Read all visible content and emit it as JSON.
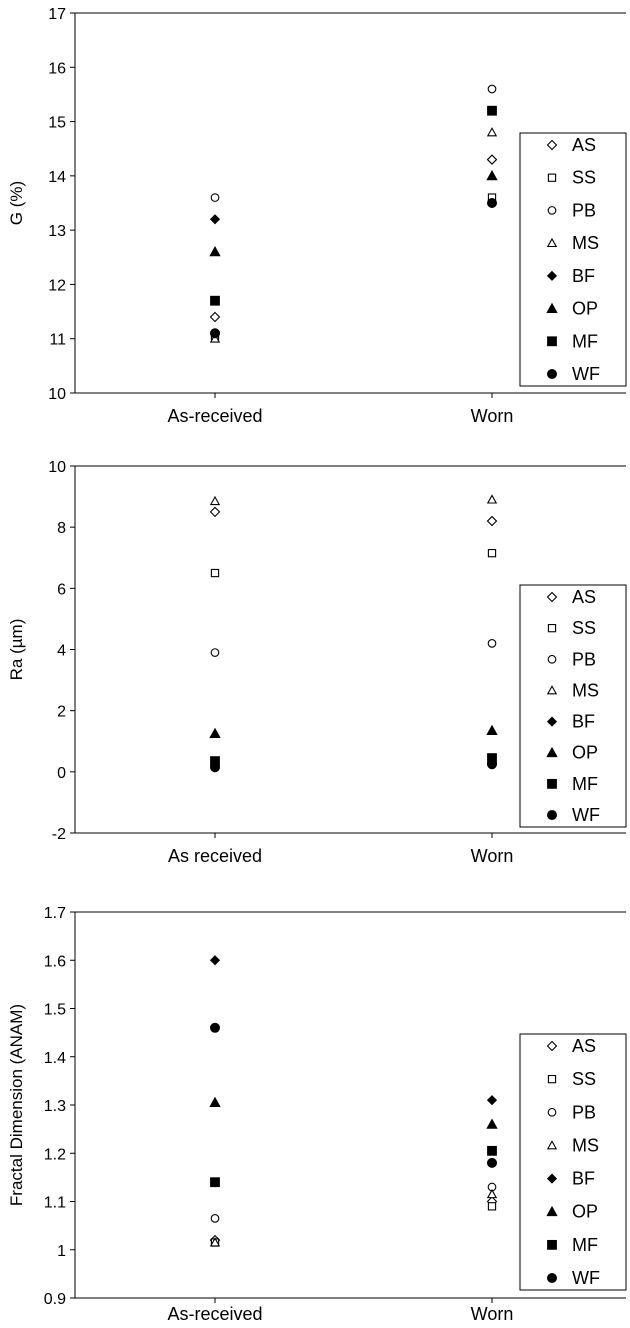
{
  "chart_data": [
    {
      "type": "scatter",
      "ylabel": "G (%)",
      "ylim": [
        10,
        17
      ],
      "yticks": [
        "10",
        "11",
        "12",
        "13",
        "14",
        "15",
        "16",
        "17"
      ],
      "categories": [
        "As-received",
        "Worn"
      ],
      "legend_position": "right",
      "series": [
        {
          "name": "AS",
          "marker": "diamond-open",
          "values": [
            11.4,
            14.3
          ]
        },
        {
          "name": "SS",
          "marker": "square-open",
          "values": [
            11.05,
            13.6
          ]
        },
        {
          "name": "PB",
          "marker": "circle-open",
          "values": [
            13.6,
            15.6
          ]
        },
        {
          "name": "MS",
          "marker": "triangle-open",
          "values": [
            11.0,
            14.8
          ]
        },
        {
          "name": "BF",
          "marker": "diamond-filled",
          "values": [
            13.2,
            13.5
          ]
        },
        {
          "name": "OP",
          "marker": "triangle-filled",
          "values": [
            12.6,
            14.0
          ]
        },
        {
          "name": "MF",
          "marker": "square-filled",
          "values": [
            11.7,
            15.2
          ]
        },
        {
          "name": "WF",
          "marker": "circle-filled",
          "values": [
            11.1,
            13.5
          ]
        }
      ]
    },
    {
      "type": "scatter",
      "ylabel": "Ra (µm)",
      "ylim": [
        -2,
        10
      ],
      "yticks": [
        "-2",
        "0",
        "2",
        "4",
        "6",
        "8",
        "10"
      ],
      "categories": [
        "As received",
        "Worn"
      ],
      "legend_position": "right",
      "series": [
        {
          "name": "AS",
          "marker": "diamond-open",
          "values": [
            8.5,
            8.2
          ]
        },
        {
          "name": "SS",
          "marker": "square-open",
          "values": [
            6.5,
            7.15
          ]
        },
        {
          "name": "PB",
          "marker": "circle-open",
          "values": [
            3.9,
            4.2
          ]
        },
        {
          "name": "MS",
          "marker": "triangle-open",
          "values": [
            8.85,
            8.9
          ]
        },
        {
          "name": "BF",
          "marker": "diamond-filled",
          "values": [
            0.15,
            0.25
          ]
        },
        {
          "name": "OP",
          "marker": "triangle-filled",
          "values": [
            1.25,
            1.35
          ]
        },
        {
          "name": "MF",
          "marker": "square-filled",
          "values": [
            0.35,
            0.45
          ]
        },
        {
          "name": "WF",
          "marker": "circle-filled",
          "values": [
            0.15,
            0.25
          ]
        }
      ]
    },
    {
      "type": "scatter",
      "ylabel": "Fractal Dimension (ANAM)",
      "ylim": [
        0.9,
        1.7
      ],
      "yticks": [
        "0.9",
        "1",
        "1.1",
        "1.2",
        "1.3",
        "1.4",
        "1.5",
        "1.6",
        "1.7"
      ],
      "categories": [
        "As-received",
        "Worn"
      ],
      "legend_position": "right",
      "series": [
        {
          "name": "AS",
          "marker": "diamond-open",
          "values": [
            1.02,
            1.1
          ]
        },
        {
          "name": "SS",
          "marker": "square-open",
          "values": [
            1.015,
            1.09
          ]
        },
        {
          "name": "PB",
          "marker": "circle-open",
          "values": [
            1.065,
            1.13
          ]
        },
        {
          "name": "MS",
          "marker": "triangle-open",
          "values": [
            1.015,
            1.115
          ]
        },
        {
          "name": "BF",
          "marker": "diamond-filled",
          "values": [
            1.6,
            1.31
          ]
        },
        {
          "name": "OP",
          "marker": "triangle-filled",
          "values": [
            1.305,
            1.26
          ]
        },
        {
          "name": "MF",
          "marker": "square-filled",
          "values": [
            1.14,
            1.205
          ]
        },
        {
          "name": "WF",
          "marker": "circle-filled",
          "values": [
            1.46,
            1.18
          ]
        }
      ]
    }
  ]
}
